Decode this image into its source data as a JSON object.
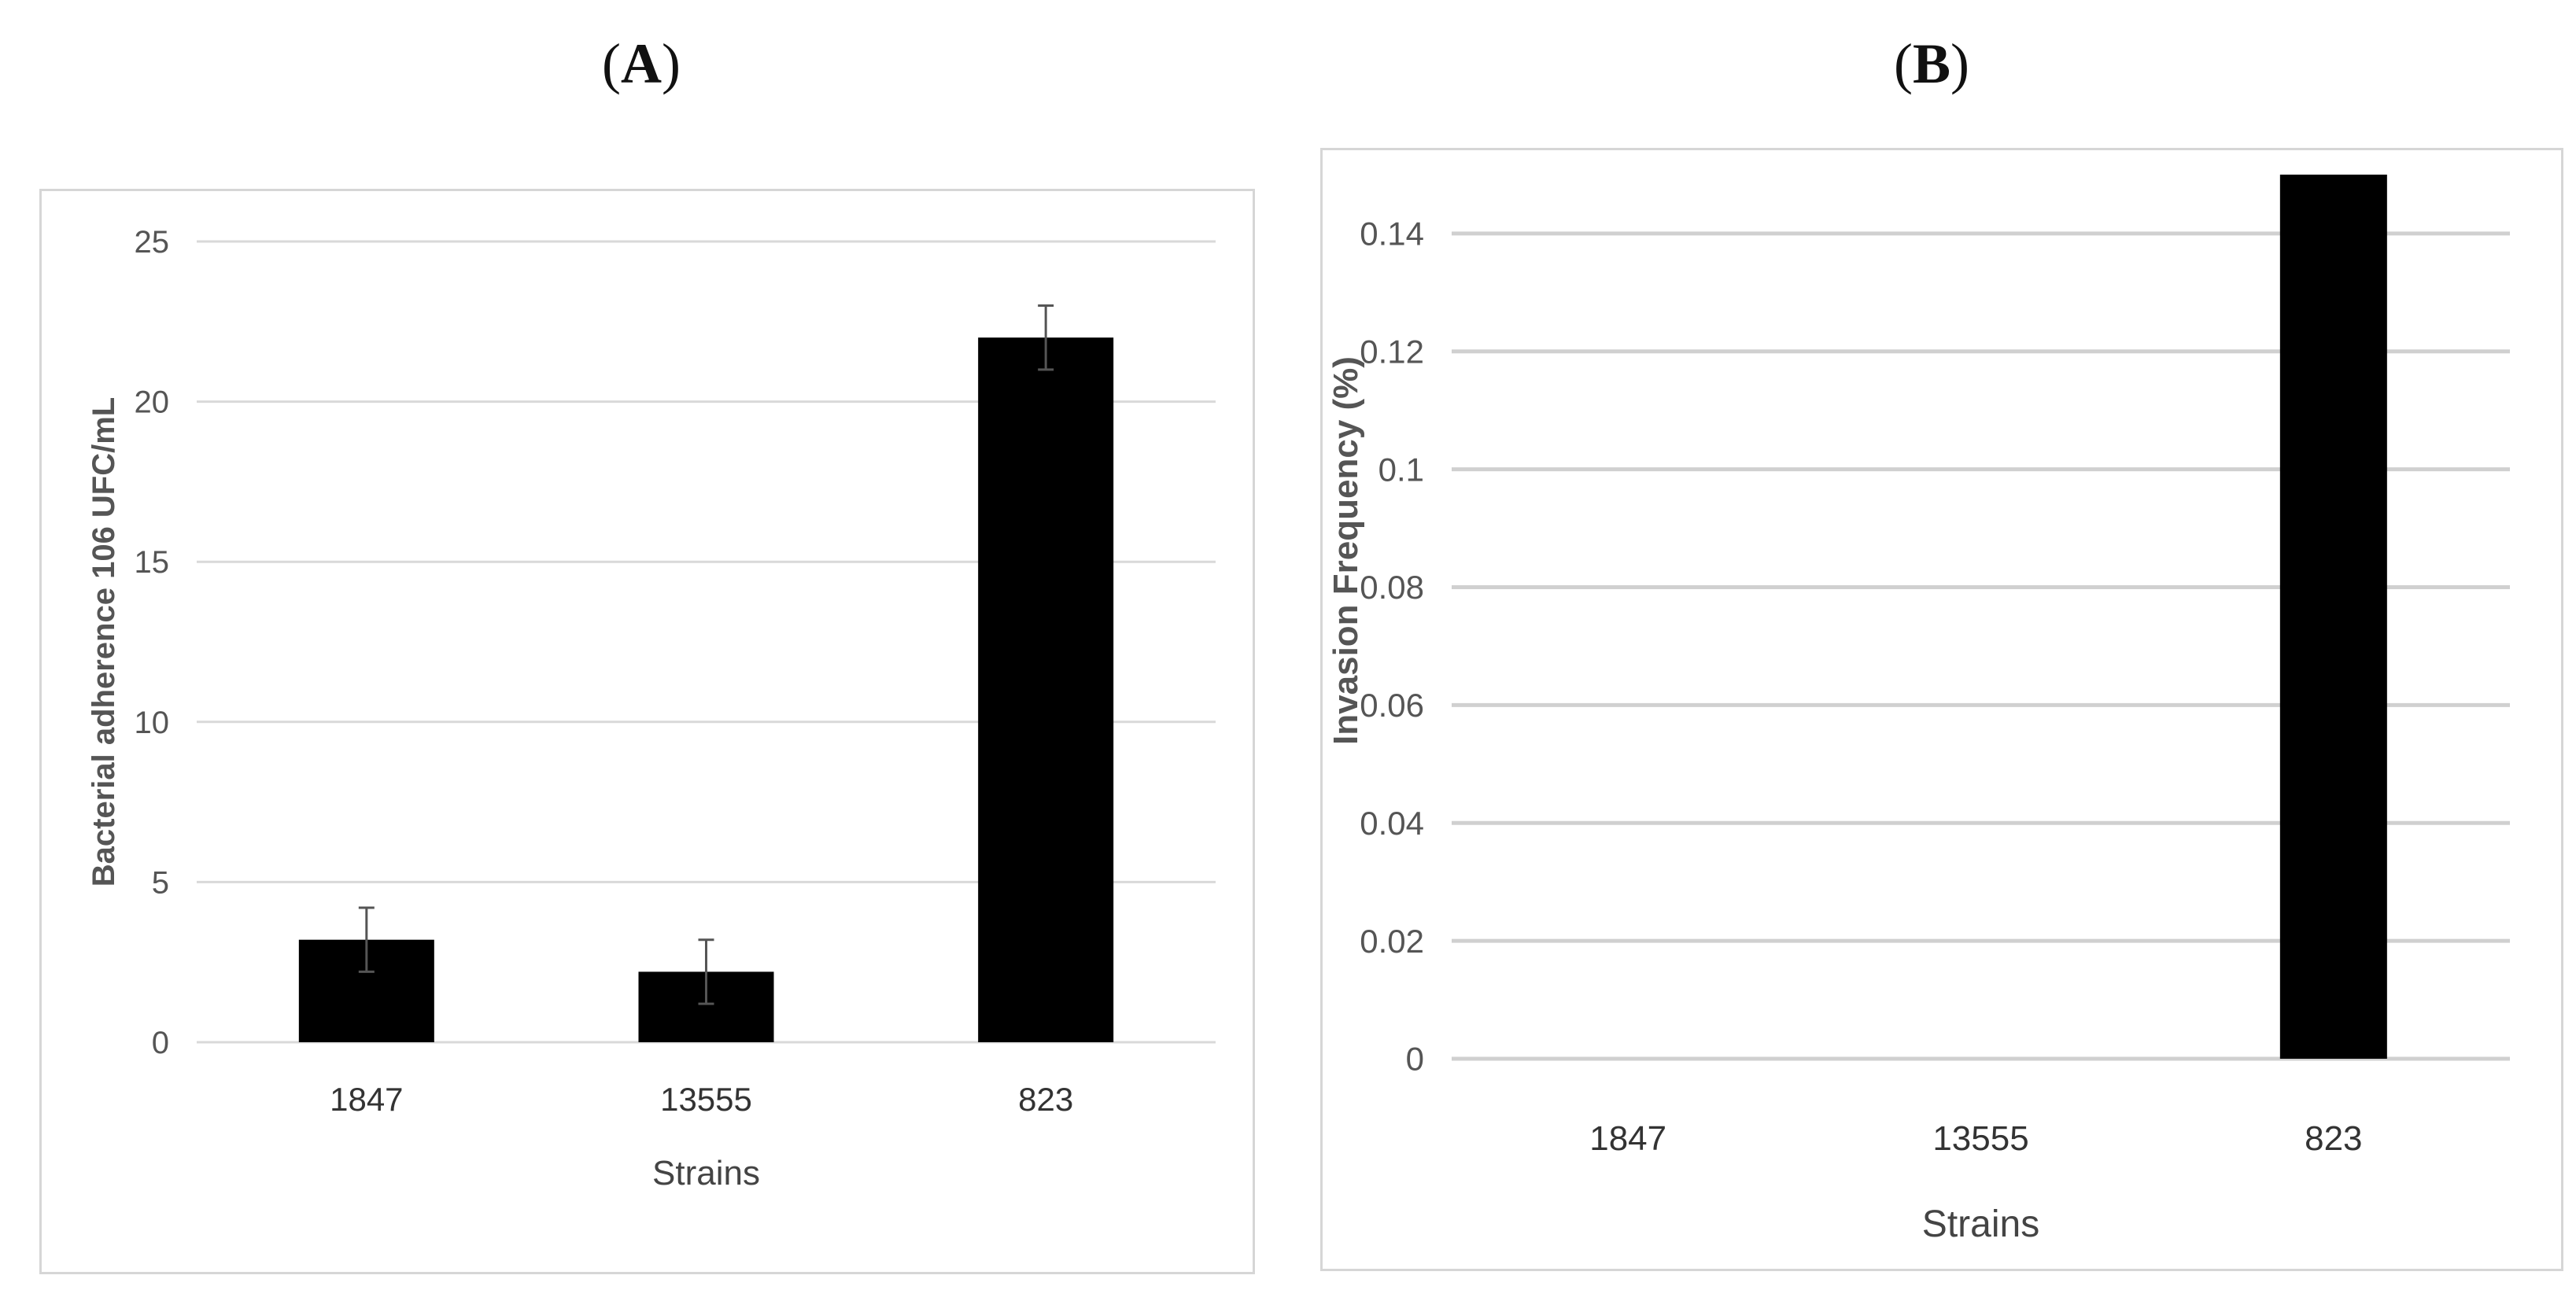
{
  "chart_data": [
    {
      "type": "bar",
      "panel": "(A)",
      "panel_letter": "A",
      "categories": [
        "1847",
        "13555",
        "823"
      ],
      "values": [
        3.2,
        2.2,
        22
      ],
      "error": [
        1.0,
        1.0,
        1.0
      ],
      "ylabel": "Bacterial adherence 106 UFC/mL",
      "xlabel": "Strains",
      "ylim": [
        0,
        25
      ],
      "yticks": [
        0,
        5,
        10,
        15,
        20,
        25
      ],
      "grid": true,
      "bar_color": "#000000",
      "grid_color": "#d9d9d9"
    },
    {
      "type": "bar",
      "panel": "(B)",
      "panel_letter": "B",
      "categories": [
        "1847",
        "13555",
        "823"
      ],
      "values": [
        0,
        0,
        0.15
      ],
      "ylabel": "Invasion  Frequency (%)",
      "xlabel": "Strains",
      "ylim": [
        0,
        0.15
      ],
      "yticks": [
        "0",
        "0.02",
        "0.04",
        "0.06",
        "0.08",
        "0.1",
        "0.12",
        "0.14"
      ],
      "grid": true,
      "bar_color": "#000000",
      "grid_color": "#d0d0d0"
    }
  ]
}
